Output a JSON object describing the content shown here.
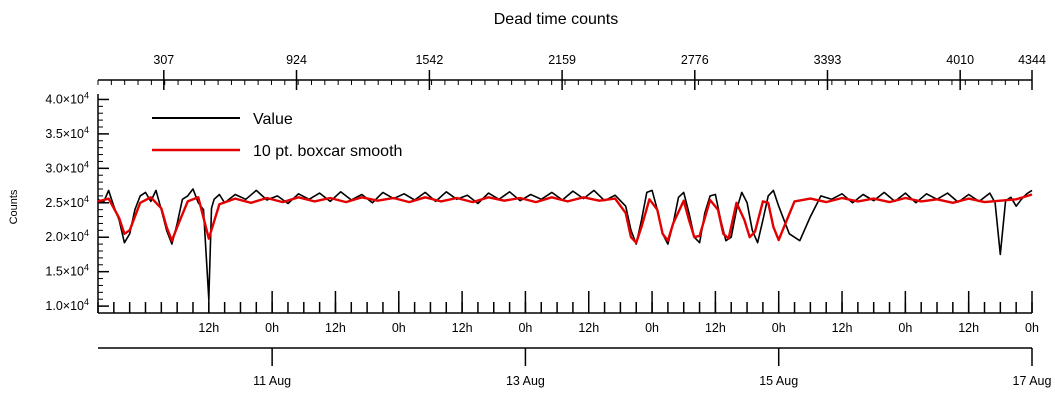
{
  "chart_data": {
    "type": "line",
    "title": "Dead time counts",
    "ylabel": "Counts",
    "ylim": [
      9000,
      40500
    ],
    "y_ticks": [
      {
        "value": 10000,
        "mantissa": "1.0×10",
        "exp": "4"
      },
      {
        "value": 15000,
        "mantissa": "1.5×10",
        "exp": "4"
      },
      {
        "value": 20000,
        "mantissa": "2.0×10",
        "exp": "4"
      },
      {
        "value": 25000,
        "mantissa": "2.5×10",
        "exp": "4"
      },
      {
        "value": 30000,
        "mantissa": "3.0×10",
        "exp": "4"
      },
      {
        "value": 35000,
        "mantissa": "3.5×10",
        "exp": "4"
      },
      {
        "value": 40000,
        "mantissa": "4.0×10",
        "exp": "4"
      }
    ],
    "x_time_range": [
      "2023-08-09T15:00",
      "2023-08-17T00:00"
    ],
    "x_time_ticks": [
      {
        "time": "2023-08-10T12:00",
        "label": "12h"
      },
      {
        "time": "2023-08-11T00:00",
        "label": "0h"
      },
      {
        "time": "2023-08-11T12:00",
        "label": "12h"
      },
      {
        "time": "2023-08-12T00:00",
        "label": "0h"
      },
      {
        "time": "2023-08-12T12:00",
        "label": "12h"
      },
      {
        "time": "2023-08-13T00:00",
        "label": "0h"
      },
      {
        "time": "2023-08-13T12:00",
        "label": "12h"
      },
      {
        "time": "2023-08-14T00:00",
        "label": "0h"
      },
      {
        "time": "2023-08-14T12:00",
        "label": "12h"
      },
      {
        "time": "2023-08-15T00:00",
        "label": "0h"
      },
      {
        "time": "2023-08-15T12:00",
        "label": "12h"
      },
      {
        "time": "2023-08-16T00:00",
        "label": "0h"
      },
      {
        "time": "2023-08-16T12:00",
        "label": "12h"
      },
      {
        "time": "2023-08-17T00:00",
        "label": "0h"
      }
    ],
    "x_date_ticks": [
      {
        "time": "2023-08-11T00:00",
        "label": "11 Aug"
      },
      {
        "time": "2023-08-13T00:00",
        "label": "13 Aug"
      },
      {
        "time": "2023-08-15T00:00",
        "label": "15 Aug"
      },
      {
        "time": "2023-08-17T00:00",
        "label": "17 Aug"
      }
    ],
    "x_top_range": [
      1,
      4344
    ],
    "x_top_ticks": [
      307,
      924,
      1542,
      2159,
      2776,
      3393,
      4010,
      4344
    ],
    "grid": false,
    "legend_position": "top-left",
    "series": [
      {
        "name": "Value",
        "color": "#000000",
        "x": [
          "2023-08-09T15:00",
          "2023-08-09T16:00",
          "2023-08-09T17:00",
          "2023-08-09T18:00",
          "2023-08-09T19:00",
          "2023-08-09T20:00",
          "2023-08-09T21:00",
          "2023-08-09T22:00",
          "2023-08-09T23:00",
          "2023-08-10T00:00",
          "2023-08-10T01:00",
          "2023-08-10T02:00",
          "2023-08-10T03:00",
          "2023-08-10T04:00",
          "2023-08-10T05:00",
          "2023-08-10T06:00",
          "2023-08-10T07:00",
          "2023-08-10T08:00",
          "2023-08-10T09:00",
          "2023-08-10T10:00",
          "2023-08-10T11:00",
          "2023-08-10T12:00",
          "2023-08-10T12:30",
          "2023-08-10T13:00",
          "2023-08-10T14:00",
          "2023-08-10T15:00",
          "2023-08-10T17:00",
          "2023-08-10T19:00",
          "2023-08-10T21:00",
          "2023-08-10T23:00",
          "2023-08-11T01:00",
          "2023-08-11T03:00",
          "2023-08-11T05:00",
          "2023-08-11T07:00",
          "2023-08-11T09:00",
          "2023-08-11T11:00",
          "2023-08-11T13:00",
          "2023-08-11T15:00",
          "2023-08-11T17:00",
          "2023-08-11T19:00",
          "2023-08-11T21:00",
          "2023-08-11T23:00",
          "2023-08-12T01:00",
          "2023-08-12T03:00",
          "2023-08-12T05:00",
          "2023-08-12T07:00",
          "2023-08-12T09:00",
          "2023-08-12T11:00",
          "2023-08-12T13:00",
          "2023-08-12T15:00",
          "2023-08-12T17:00",
          "2023-08-12T19:00",
          "2023-08-12T21:00",
          "2023-08-12T23:00",
          "2023-08-13T01:00",
          "2023-08-13T03:00",
          "2023-08-13T05:00",
          "2023-08-13T07:00",
          "2023-08-13T09:00",
          "2023-08-13T11:00",
          "2023-08-13T13:00",
          "2023-08-13T15:00",
          "2023-08-13T17:00",
          "2023-08-13T19:00",
          "2023-08-13T20:00",
          "2023-08-13T21:00",
          "2023-08-13T22:00",
          "2023-08-13T23:00",
          "2023-08-14T00:00",
          "2023-08-14T01:00",
          "2023-08-14T02:00",
          "2023-08-14T03:00",
          "2023-08-14T04:00",
          "2023-08-14T05:00",
          "2023-08-14T06:00",
          "2023-08-14T07:00",
          "2023-08-14T08:00",
          "2023-08-14T09:00",
          "2023-08-14T10:00",
          "2023-08-14T11:00",
          "2023-08-14T12:00",
          "2023-08-14T13:00",
          "2023-08-14T14:00",
          "2023-08-14T15:00",
          "2023-08-14T16:00",
          "2023-08-14T17:00",
          "2023-08-14T18:00",
          "2023-08-14T19:00",
          "2023-08-14T20:00",
          "2023-08-14T21:00",
          "2023-08-14T22:00",
          "2023-08-14T23:00",
          "2023-08-15T00:00",
          "2023-08-15T02:00",
          "2023-08-15T04:00",
          "2023-08-15T06:00",
          "2023-08-15T08:00",
          "2023-08-15T10:00",
          "2023-08-15T12:00",
          "2023-08-15T14:00",
          "2023-08-15T16:00",
          "2023-08-15T18:00",
          "2023-08-15T20:00",
          "2023-08-15T22:00",
          "2023-08-16T00:00",
          "2023-08-16T02:00",
          "2023-08-16T04:00",
          "2023-08-16T06:00",
          "2023-08-16T08:00",
          "2023-08-16T10:00",
          "2023-08-16T12:00",
          "2023-08-16T14:00",
          "2023-08-16T16:00",
          "2023-08-16T17:00",
          "2023-08-16T18:00",
          "2023-08-16T19:00",
          "2023-08-16T20:00",
          "2023-08-16T21:00",
          "2023-08-16T22:00",
          "2023-08-16T23:00",
          "2023-08-17T00:00"
        ],
        "values": [
          25500,
          25000,
          26800,
          24500,
          22500,
          19200,
          20500,
          24000,
          26000,
          26500,
          25200,
          26800,
          24000,
          21000,
          19000,
          22000,
          25500,
          26000,
          27000,
          25000,
          24000,
          11000,
          24200,
          25500,
          26200,
          25000,
          26200,
          25500,
          26800,
          25400,
          26000,
          24900,
          26300,
          25500,
          26400,
          25200,
          26600,
          25400,
          26200,
          25000,
          26500,
          25600,
          26300,
          25400,
          26500,
          25200,
          26600,
          25500,
          26100,
          24900,
          26400,
          25500,
          26600,
          25300,
          26200,
          25500,
          26500,
          25400,
          26700,
          25600,
          26800,
          25300,
          26100,
          24500,
          21000,
          19000,
          22500,
          26500,
          26800,
          24000,
          20500,
          19000,
          22000,
          25800,
          26500,
          23500,
          20000,
          19200,
          23500,
          26000,
          26200,
          22500,
          19500,
          20000,
          24000,
          26500,
          25000,
          21000,
          19200,
          22500,
          26000,
          26800,
          24500,
          20500,
          19500,
          23000,
          26000,
          25500,
          26300,
          25000,
          26200,
          25300,
          26500,
          25200,
          26400,
          25000,
          26300,
          25500,
          26400,
          25100,
          26200,
          25200,
          26400,
          25000,
          17500,
          25300,
          25800,
          24500,
          25500,
          26300,
          26800
        ]
      },
      {
        "name": "10 pt. boxcar smooth",
        "color": "#e30000",
        "x": [
          "2023-08-09T15:00",
          "2023-08-09T17:00",
          "2023-08-09T19:00",
          "2023-08-09T20:00",
          "2023-08-09T21:00",
          "2023-08-09T23:00",
          "2023-08-10T01:00",
          "2023-08-10T03:00",
          "2023-08-10T04:00",
          "2023-08-10T05:00",
          "2023-08-10T06:00",
          "2023-08-10T08:00",
          "2023-08-10T10:00",
          "2023-08-10T12:00",
          "2023-08-10T14:00",
          "2023-08-10T17:00",
          "2023-08-10T20:00",
          "2023-08-10T23:00",
          "2023-08-11T02:00",
          "2023-08-11T05:00",
          "2023-08-11T08:00",
          "2023-08-11T11:00",
          "2023-08-11T14:00",
          "2023-08-11T17:00",
          "2023-08-11T20:00",
          "2023-08-11T23:00",
          "2023-08-12T02:00",
          "2023-08-12T05:00",
          "2023-08-12T08:00",
          "2023-08-12T11:00",
          "2023-08-12T14:00",
          "2023-08-12T17:00",
          "2023-08-12T20:00",
          "2023-08-12T23:00",
          "2023-08-13T02:00",
          "2023-08-13T05:00",
          "2023-08-13T08:00",
          "2023-08-13T11:00",
          "2023-08-13T14:00",
          "2023-08-13T17:00",
          "2023-08-13T19:00",
          "2023-08-13T20:00",
          "2023-08-13T21:00",
          "2023-08-13T22:00",
          "2023-08-13T23:30",
          "2023-08-14T01:00",
          "2023-08-14T02:00",
          "2023-08-14T03:00",
          "2023-08-14T04:00",
          "2023-08-14T06:00",
          "2023-08-14T07:00",
          "2023-08-14T08:00",
          "2023-08-14T09:00",
          "2023-08-14T11:00",
          "2023-08-14T12:30",
          "2023-08-14T13:30",
          "2023-08-14T14:30",
          "2023-08-14T16:00",
          "2023-08-14T17:30",
          "2023-08-14T18:30",
          "2023-08-14T19:30",
          "2023-08-14T21:00",
          "2023-08-14T22:00",
          "2023-08-14T23:00",
          "2023-08-15T00:00",
          "2023-08-15T01:00",
          "2023-08-15T03:00",
          "2023-08-15T06:00",
          "2023-08-15T09:00",
          "2023-08-15T12:00",
          "2023-08-15T15:00",
          "2023-08-15T18:00",
          "2023-08-15T21:00",
          "2023-08-16T00:00",
          "2023-08-16T03:00",
          "2023-08-16T06:00",
          "2023-08-16T09:00",
          "2023-08-16T12:00",
          "2023-08-16T15:00",
          "2023-08-16T18:00",
          "2023-08-16T21:00",
          "2023-08-17T00:00"
        ],
        "values": [
          25200,
          25600,
          22800,
          20500,
          21000,
          25000,
          25800,
          24200,
          21500,
          19500,
          21500,
          25200,
          25800,
          19800,
          24800,
          25600,
          25000,
          25700,
          25100,
          25800,
          25200,
          25700,
          25100,
          25800,
          25300,
          25700,
          25100,
          25800,
          25200,
          25700,
          25100,
          25800,
          25300,
          25700,
          25100,
          25800,
          25200,
          25800,
          25300,
          25600,
          23500,
          20000,
          19200,
          21500,
          25500,
          24000,
          20500,
          19500,
          22000,
          25300,
          22500,
          20000,
          20200,
          25400,
          24000,
          20500,
          19800,
          25000,
          22500,
          20000,
          20800,
          25200,
          25000,
          21500,
          19600,
          21500,
          25200,
          25600,
          25100,
          25700,
          25200,
          25600,
          25100,
          25700,
          25200,
          25500,
          25000,
          25600,
          25100,
          25300,
          25500,
          26200
        ]
      }
    ]
  }
}
